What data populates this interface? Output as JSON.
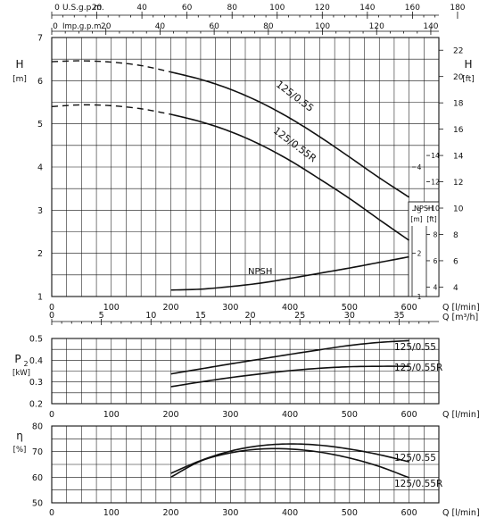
{
  "chart_data": [
    {
      "id": "head",
      "type": "line",
      "xlabel": "Q [l/min]",
      "xlim": [
        0,
        650
      ],
      "xticks": [
        0,
        100,
        200,
        300,
        400,
        500,
        600
      ],
      "ylabel_left": "H",
      "ylabel_left_unit": "[m]",
      "ylim": [
        1,
        7
      ],
      "yticks_left": [
        1,
        2,
        3,
        4,
        5,
        6,
        7
      ],
      "ylabel_right": "H",
      "ylabel_right_unit": "[ft]",
      "right_ticks_ft": [
        4,
        6,
        8,
        10,
        12,
        14,
        16,
        18,
        20,
        22
      ],
      "top_axis_usgpm": {
        "label": "U.S.g.p.m.",
        "ticks": [
          0,
          20,
          40,
          60,
          80,
          100,
          120,
          140,
          160,
          180
        ]
      },
      "top_axis_impgpm": {
        "label": "Imp.g.p.m.",
        "ticks": [
          0,
          20,
          40,
          60,
          80,
          100,
          120,
          140
        ]
      },
      "bottom_axis_m3h": {
        "label": "Q [m³/h]",
        "ticks": [
          0,
          5,
          10,
          15,
          20,
          25,
          30,
          35
        ]
      },
      "series": [
        {
          "name": "125/0.55",
          "x": [
            200,
            250,
            300,
            350,
            400,
            450,
            500,
            550,
            600
          ],
          "y": [
            6.2,
            6.03,
            5.8,
            5.5,
            5.13,
            4.7,
            4.23,
            3.75,
            3.3
          ],
          "dashed_x": [
            0,
            50,
            100,
            150,
            200
          ],
          "dashed_y": [
            6.44,
            6.46,
            6.43,
            6.35,
            6.2
          ]
        },
        {
          "name": "125/0.55R",
          "x": [
            200,
            250,
            300,
            350,
            400,
            450,
            500,
            550,
            600
          ],
          "y": [
            5.22,
            5.05,
            4.82,
            4.52,
            4.15,
            3.72,
            3.27,
            2.78,
            2.3
          ],
          "dashed_x": [
            0,
            50,
            100,
            150,
            200
          ],
          "dashed_y": [
            5.4,
            5.44,
            5.42,
            5.35,
            5.22
          ]
        },
        {
          "name": "NPSH",
          "x": [
            200,
            250,
            300,
            350,
            400,
            450,
            500,
            550,
            600
          ],
          "y": [
            1.15,
            1.17,
            1.23,
            1.31,
            1.42,
            1.54,
            1.66,
            1.79,
            1.92
          ]
        }
      ],
      "npsh_panel": {
        "title": "NPSH",
        "unit_m": "[m]",
        "unit_ft": "[ft]",
        "m_ticks": [
          1,
          2,
          3,
          4
        ],
        "ft_ticks": [
          4,
          6,
          8,
          10,
          12,
          14
        ]
      },
      "grid": true
    },
    {
      "id": "power",
      "type": "line",
      "ylabel": "P",
      "ylabel_sub": "2",
      "ylabel_unit": "[kW]",
      "ylim": [
        0.2,
        0.5
      ],
      "yticks": [
        0.2,
        0.3,
        0.4,
        0.5
      ],
      "xlabel": "Q [l/min]",
      "xlim": [
        0,
        650
      ],
      "xticks": [
        0,
        100,
        200,
        300,
        400,
        500,
        600
      ],
      "series": [
        {
          "name": "125/0.55",
          "x": [
            200,
            250,
            300,
            350,
            400,
            450,
            500,
            550,
            600
          ],
          "y": [
            0.337,
            0.36,
            0.383,
            0.405,
            0.427,
            0.448,
            0.468,
            0.482,
            0.49
          ]
        },
        {
          "name": "125/0.55R",
          "x": [
            200,
            250,
            300,
            350,
            400,
            450,
            500,
            550,
            600
          ],
          "y": [
            0.278,
            0.3,
            0.32,
            0.337,
            0.352,
            0.363,
            0.37,
            0.372,
            0.372
          ]
        }
      ],
      "grid": true
    },
    {
      "id": "efficiency",
      "type": "line",
      "ylabel": "η",
      "ylabel_unit": "[%]",
      "ylim": [
        50,
        80
      ],
      "yticks": [
        50,
        60,
        70,
        80
      ],
      "xlabel": "Q [l/min]",
      "xlim": [
        0,
        650
      ],
      "xticks": [
        0,
        100,
        200,
        300,
        400,
        500,
        600
      ],
      "series": [
        {
          "name": "125/0.55",
          "x": [
            200,
            250,
            300,
            350,
            400,
            450,
            500,
            550,
            600
          ],
          "y": [
            61.5,
            66.5,
            70.2,
            72.3,
            73.0,
            72.5,
            71.0,
            68.8,
            66.0
          ]
        },
        {
          "name": "125/0.55R",
          "x": [
            200,
            250,
            300,
            350,
            400,
            450,
            500,
            550,
            600
          ],
          "y": [
            60.0,
            66.3,
            69.5,
            71.0,
            71.0,
            69.8,
            67.5,
            64.2,
            59.8
          ]
        }
      ],
      "grid": true
    }
  ]
}
